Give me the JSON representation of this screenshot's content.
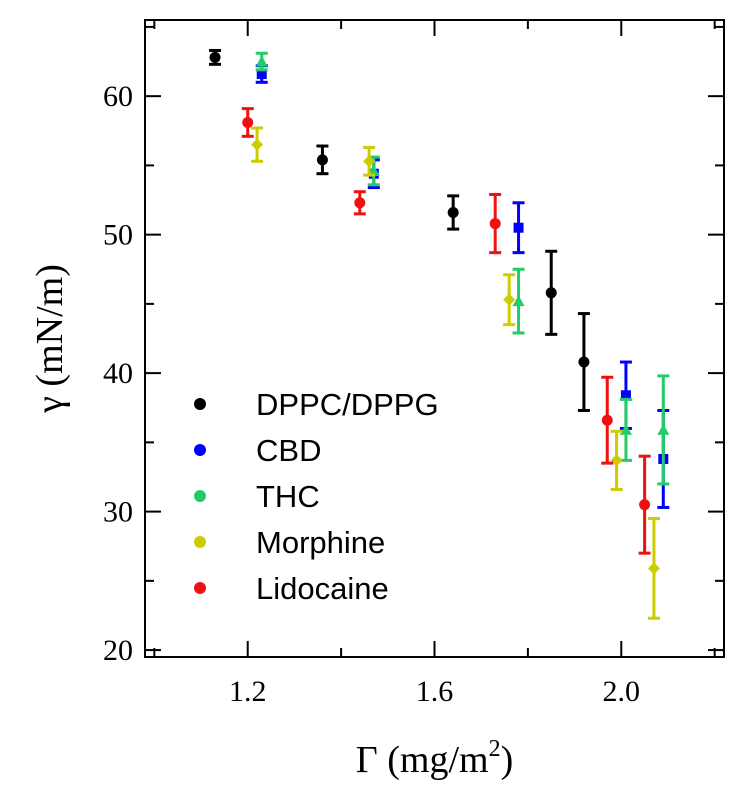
{
  "chart_data": {
    "type": "scatter",
    "title": "",
    "xlabel": "Γ (mg/m",
    "xlabel_sup": "2",
    "xlabel_close": ")",
    "ylabel": "γ (mN/m)",
    "xlim": [
      0.98,
      2.22
    ],
    "ylim": [
      19.5,
      65.5
    ],
    "xticks": [
      1.2,
      1.6,
      2.0
    ],
    "xtick_labels": [
      "1.2",
      "1.6",
      "2.0"
    ],
    "xminor": [
      1.0,
      1.4,
      1.8,
      2.2
    ],
    "yticks": [
      20,
      30,
      40,
      50,
      60
    ],
    "ytick_labels": [
      "20",
      "30",
      "40",
      "50",
      "60"
    ],
    "yminor": [
      25,
      35,
      45,
      55,
      65
    ],
    "legend_position": "bottom-left",
    "series": [
      {
        "name": "DPPC/DPPG",
        "color": "#000000",
        "marker": "circle",
        "points": [
          {
            "x": 1.13,
            "y": 62.8,
            "err": 0.5
          },
          {
            "x": 1.36,
            "y": 55.4,
            "err": 1.0
          },
          {
            "x": 1.64,
            "y": 51.6,
            "err": 1.2
          },
          {
            "x": 1.85,
            "y": 45.8,
            "err": 3.0
          },
          {
            "x": 1.92,
            "y": 40.8,
            "err": 3.5
          }
        ]
      },
      {
        "name": "CBD",
        "color": "#0000ff",
        "marker": "square",
        "points": [
          {
            "x": 1.23,
            "y": 61.6,
            "err": 0.6
          },
          {
            "x": 1.47,
            "y": 54.4,
            "err": 1.0
          },
          {
            "x": 1.78,
            "y": 50.5,
            "err": 1.8
          },
          {
            "x": 2.01,
            "y": 38.4,
            "err": 2.4
          },
          {
            "x": 2.09,
            "y": 33.8,
            "err": 3.5
          }
        ]
      },
      {
        "name": "THC",
        "color": "#22cc66",
        "marker": "triangle",
        "points": [
          {
            "x": 1.23,
            "y": 62.5,
            "err": 0.6
          },
          {
            "x": 1.47,
            "y": 54.6,
            "err": 1.0
          },
          {
            "x": 1.78,
            "y": 45.2,
            "err": 2.3
          },
          {
            "x": 2.01,
            "y": 35.9,
            "err": 2.2
          },
          {
            "x": 2.09,
            "y": 35.9,
            "err": 3.9
          }
        ]
      },
      {
        "name": "Morphine",
        "color": "#cccc00",
        "marker": "diamond",
        "points": [
          {
            "x": 1.22,
            "y": 56.5,
            "err": 1.2
          },
          {
            "x": 1.46,
            "y": 55.3,
            "err": 1.0
          },
          {
            "x": 1.76,
            "y": 45.3,
            "err": 1.8
          },
          {
            "x": 1.99,
            "y": 33.7,
            "err": 2.1
          },
          {
            "x": 2.07,
            "y": 25.9,
            "err": 3.6
          }
        ]
      },
      {
        "name": "Lidocaine",
        "color": "#ee1111",
        "marker": "circle",
        "points": [
          {
            "x": 1.2,
            "y": 58.1,
            "err": 1.0
          },
          {
            "x": 1.44,
            "y": 52.3,
            "err": 0.8
          },
          {
            "x": 1.73,
            "y": 50.8,
            "err": 2.1
          },
          {
            "x": 1.97,
            "y": 36.6,
            "err": 3.1
          },
          {
            "x": 2.05,
            "y": 30.5,
            "err": 3.5
          }
        ]
      }
    ]
  }
}
